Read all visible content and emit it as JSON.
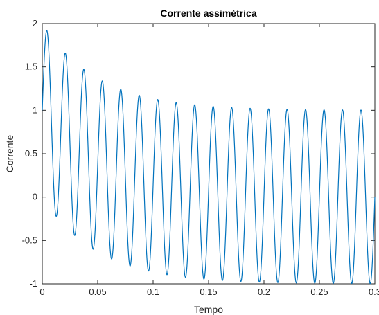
{
  "chart_data": {
    "type": "line",
    "title": "Corrente assimétrica",
    "xlabel": "Tempo",
    "ylabel": "Corrente",
    "xlim": [
      0,
      0.3
    ],
    "ylim": [
      -1,
      2
    ],
    "xticks": [
      0,
      0.05,
      0.1,
      0.15,
      0.2,
      0.25,
      0.3
    ],
    "xtick_labels": [
      "0",
      "0.05",
      "0.1",
      "0.15",
      "0.2",
      "0.25",
      "0.3"
    ],
    "yticks": [
      -1,
      -0.5,
      0,
      0.5,
      1,
      1.5,
      2
    ],
    "ytick_labels": [
      "-1",
      "-0.5",
      "0",
      "0.5",
      "1",
      "1.5",
      "2"
    ],
    "grid": false,
    "series": [
      {
        "color": "#0072BD",
        "function": "sin(2*pi*60*t) + exp(-t/0.05)",
        "frequency_hz": 60,
        "dc_offset_initial": 1,
        "time_constant_s": 0.05,
        "t_range": [
          0,
          0.3
        ]
      }
    ]
  }
}
